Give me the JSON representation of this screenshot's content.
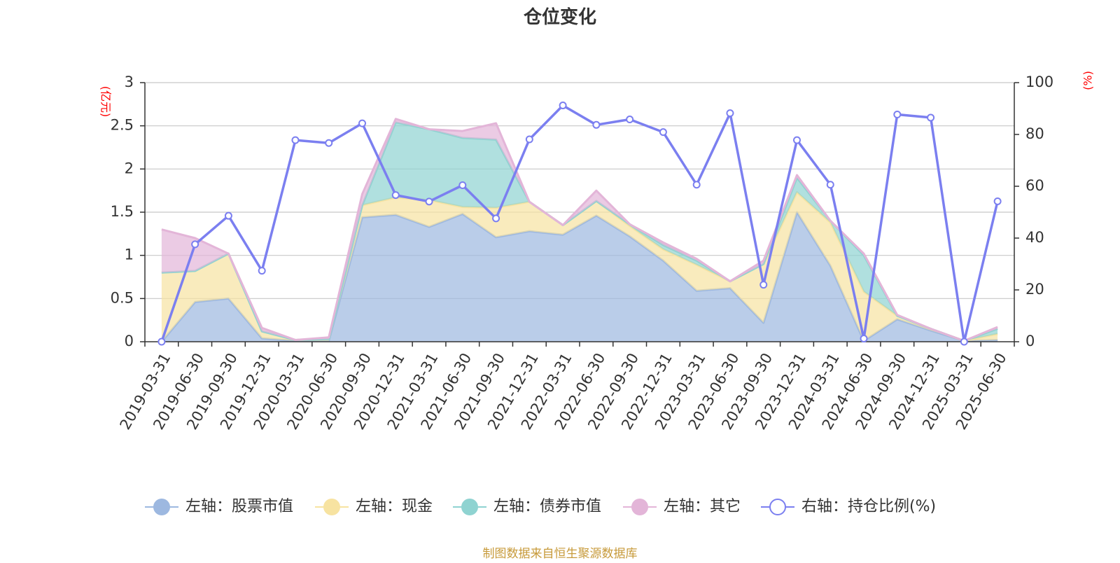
{
  "title": "仓位变化",
  "left_unit": "(亿元)",
  "right_unit": "(%)",
  "source": "制图数据来自恒生聚源数据库",
  "colors": {
    "stock": "#9db8e0",
    "cash": "#f7e3a1",
    "bond": "#8fd3d1",
    "other": "#e3b5d8",
    "ratio": "#7b7ff0"
  },
  "chart_data": {
    "type": "area",
    "x": [
      "2019-03-31",
      "2019-06-30",
      "2019-09-30",
      "2019-12-31",
      "2020-03-31",
      "2020-06-30",
      "2020-09-30",
      "2020-12-31",
      "2021-03-31",
      "2021-06-30",
      "2021-09-30",
      "2021-12-31",
      "2022-03-31",
      "2022-06-30",
      "2022-09-30",
      "2022-12-31",
      "2023-03-31",
      "2023-06-30",
      "2023-09-30",
      "2023-12-31",
      "2024-03-31",
      "2024-06-30",
      "2024-09-30",
      "2024-12-31",
      "2025-03-31",
      "2025-06-30"
    ],
    "y_left": {
      "ticks": [
        "0",
        "0.5",
        "1",
        "1.5",
        "2",
        "2.5",
        "3"
      ],
      "ylim": [
        0,
        3
      ]
    },
    "y_right": {
      "ticks": [
        "0",
        "20",
        "40",
        "60",
        "80",
        "100"
      ],
      "ylim": [
        0,
        100
      ]
    },
    "grid": true,
    "legend_position": "bottom",
    "series": [
      {
        "name": "左轴：股票市值",
        "axis": "left",
        "kind": "stacked-area",
        "values": [
          0.0,
          0.46,
          0.5,
          0.04,
          0.01,
          0.01,
          1.44,
          1.47,
          1.33,
          1.48,
          1.21,
          1.28,
          1.24,
          1.46,
          1.22,
          0.94,
          0.59,
          0.62,
          0.22,
          1.5,
          0.88,
          0.01,
          0.26,
          0.13,
          0.01,
          0.02
        ]
      },
      {
        "name": "左轴：现金",
        "axis": "left",
        "kind": "stacked-area",
        "values": [
          0.8,
          0.36,
          0.52,
          0.08,
          0.01,
          0.02,
          0.14,
          0.2,
          0.31,
          0.08,
          0.34,
          0.34,
          0.11,
          0.17,
          0.12,
          0.13,
          0.3,
          0.08,
          0.68,
          0.23,
          0.5,
          0.57,
          0.04,
          0.02,
          0.0,
          0.07
        ]
      },
      {
        "name": "左轴：债券市值",
        "axis": "left",
        "kind": "stacked-area",
        "values": [
          0.0,
          0.0,
          0.0,
          0.0,
          0.0,
          0.0,
          0.0,
          0.87,
          0.82,
          0.8,
          0.79,
          0.0,
          0.0,
          0.0,
          0.02,
          0.05,
          0.05,
          0.0,
          0.0,
          0.17,
          0.02,
          0.42,
          0.0,
          0.0,
          0.0,
          0.06
        ]
      },
      {
        "name": "左轴：其它",
        "axis": "left",
        "kind": "stacked-area",
        "values": [
          0.5,
          0.38,
          0.0,
          0.04,
          0.0,
          0.02,
          0.13,
          0.04,
          0.0,
          0.08,
          0.19,
          0.0,
          0.0,
          0.12,
          0.0,
          0.03,
          0.02,
          0.0,
          0.04,
          0.03,
          0.0,
          0.02,
          0.01,
          0.0,
          0.0,
          0.02
        ]
      },
      {
        "name": "右轴：持仓比例(%)",
        "axis": "right",
        "kind": "line",
        "values": [
          0.0,
          37.6,
          48.6,
          27.4,
          77.8,
          76.7,
          84.3,
          56.6,
          54.1,
          60.4,
          47.6,
          78.1,
          91.2,
          83.7,
          85.8,
          80.9,
          60.6,
          88.2,
          22.0,
          77.8,
          60.6,
          1.2,
          87.7,
          86.5,
          0.0,
          54.2
        ]
      }
    ]
  }
}
